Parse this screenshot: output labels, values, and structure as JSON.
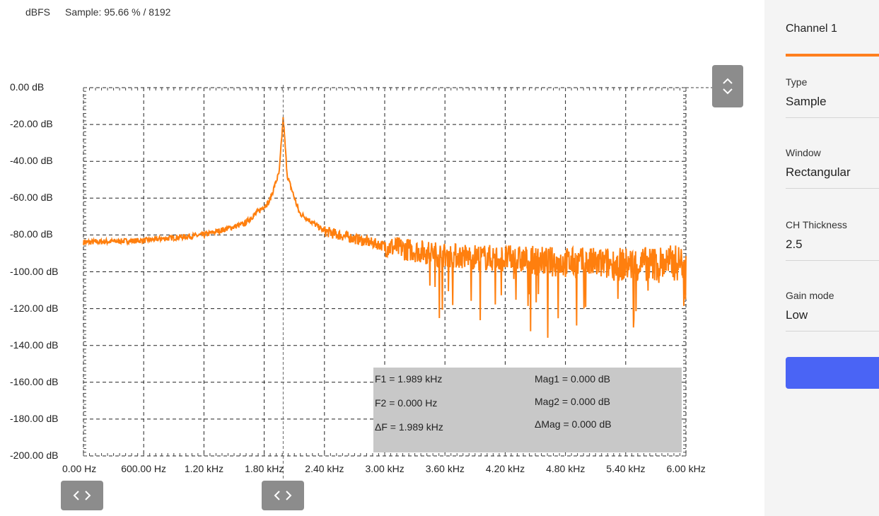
{
  "topbar": {
    "unit": "dBFS",
    "sample_info": "Sample: 95.66 % / 8192"
  },
  "axes": {
    "y_ticks": [
      "0.00 dB",
      "-20.00 dB",
      "-40.00 dB",
      "-60.00 dB",
      "-80.00 dB",
      "-100.00 dB",
      "-120.00 dB",
      "-140.00 dB",
      "-160.00 dB",
      "-180.00 dB",
      "-200.00 dB"
    ],
    "x_ticks": [
      "0.00 Hz",
      "600.00 Hz",
      "1.20 kHz",
      "1.80 kHz",
      "2.40 kHz",
      "3.00 kHz",
      "3.60 kHz",
      "4.20 kHz",
      "4.80 kHz",
      "5.40 kHz",
      "6.00 kHz"
    ]
  },
  "chart_data": {
    "type": "line",
    "xlim": [
      0,
      6000
    ],
    "ylim": [
      -200,
      0
    ],
    "xunit": "Hz",
    "yunit": "dB",
    "grid": true,
    "color": "#ff7f0e",
    "peak": {
      "x": 1989,
      "y": -16
    },
    "noise_floor_profile": [
      [
        0,
        -84
      ],
      [
        600,
        -83
      ],
      [
        1200,
        -80
      ],
      [
        1600,
        -74
      ],
      [
        1850,
        -62
      ],
      [
        1950,
        -46
      ],
      [
        1989,
        -16
      ],
      [
        2030,
        -48
      ],
      [
        2150,
        -68
      ],
      [
        2400,
        -78
      ],
      [
        3000,
        -86
      ],
      [
        3600,
        -91
      ],
      [
        4200,
        -93
      ],
      [
        4800,
        -95
      ],
      [
        5400,
        -96
      ],
      [
        6000,
        -95
      ]
    ],
    "marker_x": 1989
  },
  "readout": {
    "f1": "F1 =  1.989 kHz",
    "f2": "F2 =  0.000 Hz",
    "df": "ΔF =  1.989 kHz",
    "mag1": "Mag1 =  0.000 dB",
    "mag2": "Mag2 =  0.000 dB",
    "dmag": "ΔMag =  0.000 dB"
  },
  "handles": {
    "vertical_icon": "chevron-up-down-icon",
    "horizontal_icon": "chevron-left-right-icon"
  },
  "sidebar": {
    "title": "Channel 1",
    "accent": "#ff7f1e",
    "button_color": "#4a64f5",
    "fields": [
      {
        "label": "Type",
        "value": "Sample"
      },
      {
        "label": "Window",
        "value": "Rectangular"
      },
      {
        "label": "CH Thickness",
        "value": "2.5"
      },
      {
        "label": "Gain mode",
        "value": "Low"
      }
    ]
  }
}
